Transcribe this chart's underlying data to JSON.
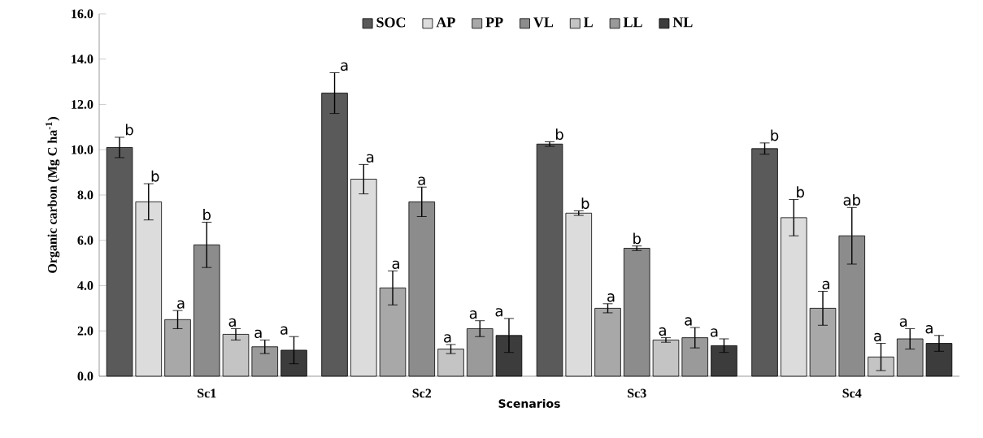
{
  "chart_data": {
    "type": "bar",
    "xlabel": "Scenarios",
    "ylabel": "Organic carbon (Mg C ha$^{-1}$)",
    "categories": [
      "Sc1",
      "Sc2",
      "Sc3",
      "Sc4"
    ],
    "ylim": [
      0,
      16
    ],
    "yticks": [
      {
        "value": 0,
        "label": "0.0"
      },
      {
        "value": 2,
        "label": "2.0"
      },
      {
        "value": 4,
        "label": "4.0"
      },
      {
        "value": 6,
        "label": "6.0"
      },
      {
        "value": 8,
        "label": "8.0"
      },
      {
        "value": 10,
        "label": "10.0"
      },
      {
        "value": 12,
        "label": "12.0"
      },
      {
        "value": 14,
        "label": "14.0"
      },
      {
        "value": 16,
        "label": "16.0"
      }
    ],
    "grid": false,
    "legend": "top",
    "series": [
      {
        "name": "SOC",
        "color": "#5a5a5a",
        "values": [
          10.1,
          12.5,
          10.25,
          10.05
        ],
        "errors": [
          0.45,
          0.9,
          0.1,
          0.25
        ],
        "value_labels": [
          "b",
          "a",
          "b",
          "b"
        ]
      },
      {
        "name": "AP",
        "color": "#dcdcdc",
        "values": [
          7.7,
          8.7,
          7.2,
          7.0
        ],
        "errors": [
          0.8,
          0.65,
          0.1,
          0.8
        ],
        "value_labels": [
          "b",
          "a",
          "b",
          "b"
        ]
      },
      {
        "name": "PP",
        "color": "#a8a8a8",
        "values": [
          2.5,
          3.9,
          3.0,
          3.0
        ],
        "errors": [
          0.4,
          0.75,
          0.2,
          0.75
        ],
        "value_labels": [
          "a",
          "a",
          "a",
          "a"
        ]
      },
      {
        "name": "VL",
        "color": "#8c8c8c",
        "values": [
          5.8,
          7.7,
          5.65,
          6.2
        ],
        "errors": [
          1.0,
          0.65,
          0.1,
          1.25
        ],
        "value_labels": [
          "b",
          "a",
          "b",
          "ab"
        ]
      },
      {
        "name": "L",
        "color": "#c4c4c4",
        "values": [
          1.85,
          1.2,
          1.6,
          0.85
        ],
        "errors": [
          0.25,
          0.2,
          0.1,
          0.6
        ],
        "value_labels": [
          "a",
          "a",
          "a",
          "a"
        ]
      },
      {
        "name": "LL",
        "color": "#9a9a9a",
        "values": [
          1.3,
          2.1,
          1.7,
          1.65
        ],
        "errors": [
          0.3,
          0.35,
          0.45,
          0.45
        ],
        "value_labels": [
          "a",
          "a",
          "a",
          "a"
        ]
      },
      {
        "name": "NL",
        "color": "#3c3c3c",
        "values": [
          1.15,
          1.8,
          1.35,
          1.45
        ],
        "errors": [
          0.6,
          0.75,
          0.3,
          0.35
        ],
        "value_labels": [
          "a",
          "a",
          "a",
          "a"
        ]
      }
    ]
  }
}
